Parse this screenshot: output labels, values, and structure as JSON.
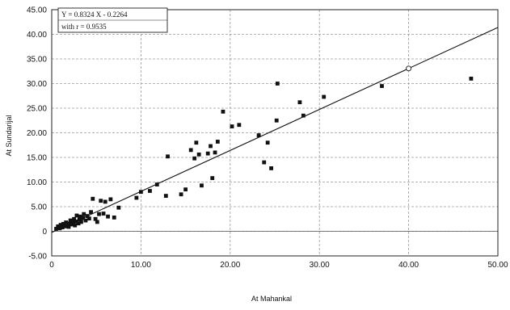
{
  "chart_data": {
    "type": "scatter",
    "title": "",
    "xlabel": "At Mahankal",
    "ylabel": "At Sundarijal",
    "xlim": [
      0,
      50
    ],
    "ylim": [
      -5,
      45
    ],
    "x_ticks": [
      "0",
      "10.00",
      "20.00",
      "30.00",
      "40.00",
      "50.00"
    ],
    "y_ticks": [
      "-5.00",
      "0",
      "5.00",
      "10.00",
      "15.00",
      "20.00",
      "25.00",
      "30.00",
      "35.00",
      "40.00",
      "45.00"
    ],
    "grid": true,
    "equation": {
      "line1": "Y = 0.8324 X - 0.2264",
      "line2": "with r = 0.9535"
    },
    "fit_line": {
      "slope": 0.8324,
      "intercept": -0.2264
    },
    "series": [
      {
        "points": [
          [
            0.5,
            0.5
          ],
          [
            0.7,
            1.0
          ],
          [
            0.9,
            0.6
          ],
          [
            1.0,
            1.3
          ],
          [
            1.2,
            0.8
          ],
          [
            1.3,
            1.5
          ],
          [
            1.5,
            1.0
          ],
          [
            1.6,
            1.8
          ],
          [
            1.8,
            1.2
          ],
          [
            1.9,
            0.9
          ],
          [
            2.0,
            1.6
          ],
          [
            2.1,
            2.2
          ],
          [
            2.3,
            1.4
          ],
          [
            2.4,
            1.9
          ],
          [
            2.5,
            2.5
          ],
          [
            2.6,
            1.2
          ],
          [
            2.7,
            2.0
          ],
          [
            2.8,
            3.2
          ],
          [
            3.0,
            1.6
          ],
          [
            3.1,
            2.4
          ],
          [
            3.2,
            3.0
          ],
          [
            3.3,
            1.9
          ],
          [
            3.5,
            2.7
          ],
          [
            3.6,
            3.5
          ],
          [
            3.8,
            2.2
          ],
          [
            4.0,
            3.1
          ],
          [
            4.2,
            2.6
          ],
          [
            4.4,
            3.9
          ],
          [
            4.6,
            6.6
          ],
          [
            4.9,
            2.5
          ],
          [
            5.1,
            1.9
          ],
          [
            5.3,
            3.5
          ],
          [
            5.5,
            6.2
          ],
          [
            5.8,
            3.6
          ],
          [
            6.0,
            6.0
          ],
          [
            6.3,
            3.0
          ],
          [
            6.6,
            6.5
          ],
          [
            7.0,
            2.8
          ],
          [
            7.5,
            4.8
          ],
          [
            9.5,
            6.8
          ],
          [
            10.0,
            8.0
          ],
          [
            11.0,
            8.2
          ],
          [
            11.8,
            9.5
          ],
          [
            12.8,
            7.2
          ],
          [
            13.0,
            15.2
          ],
          [
            14.5,
            7.5
          ],
          [
            15.0,
            8.5
          ],
          [
            15.6,
            16.5
          ],
          [
            16.0,
            14.8
          ],
          [
            16.2,
            18.0
          ],
          [
            16.5,
            15.6
          ],
          [
            16.8,
            9.3
          ],
          [
            17.5,
            15.8
          ],
          [
            17.8,
            17.3
          ],
          [
            18.0,
            10.8
          ],
          [
            18.3,
            16.0
          ],
          [
            18.6,
            18.2
          ],
          [
            19.2,
            24.3
          ],
          [
            20.2,
            21.3
          ],
          [
            21.0,
            21.6
          ],
          [
            23.2,
            19.5
          ],
          [
            23.8,
            14.0
          ],
          [
            24.2,
            18.0
          ],
          [
            24.6,
            12.8
          ],
          [
            25.2,
            22.5
          ],
          [
            25.3,
            30.0
          ],
          [
            27.8,
            26.2
          ],
          [
            28.2,
            23.5
          ],
          [
            30.5,
            27.3
          ],
          [
            37.0,
            29.5
          ],
          [
            47.0,
            31.0
          ]
        ],
        "marker": "square",
        "color": "#111111"
      }
    ]
  }
}
